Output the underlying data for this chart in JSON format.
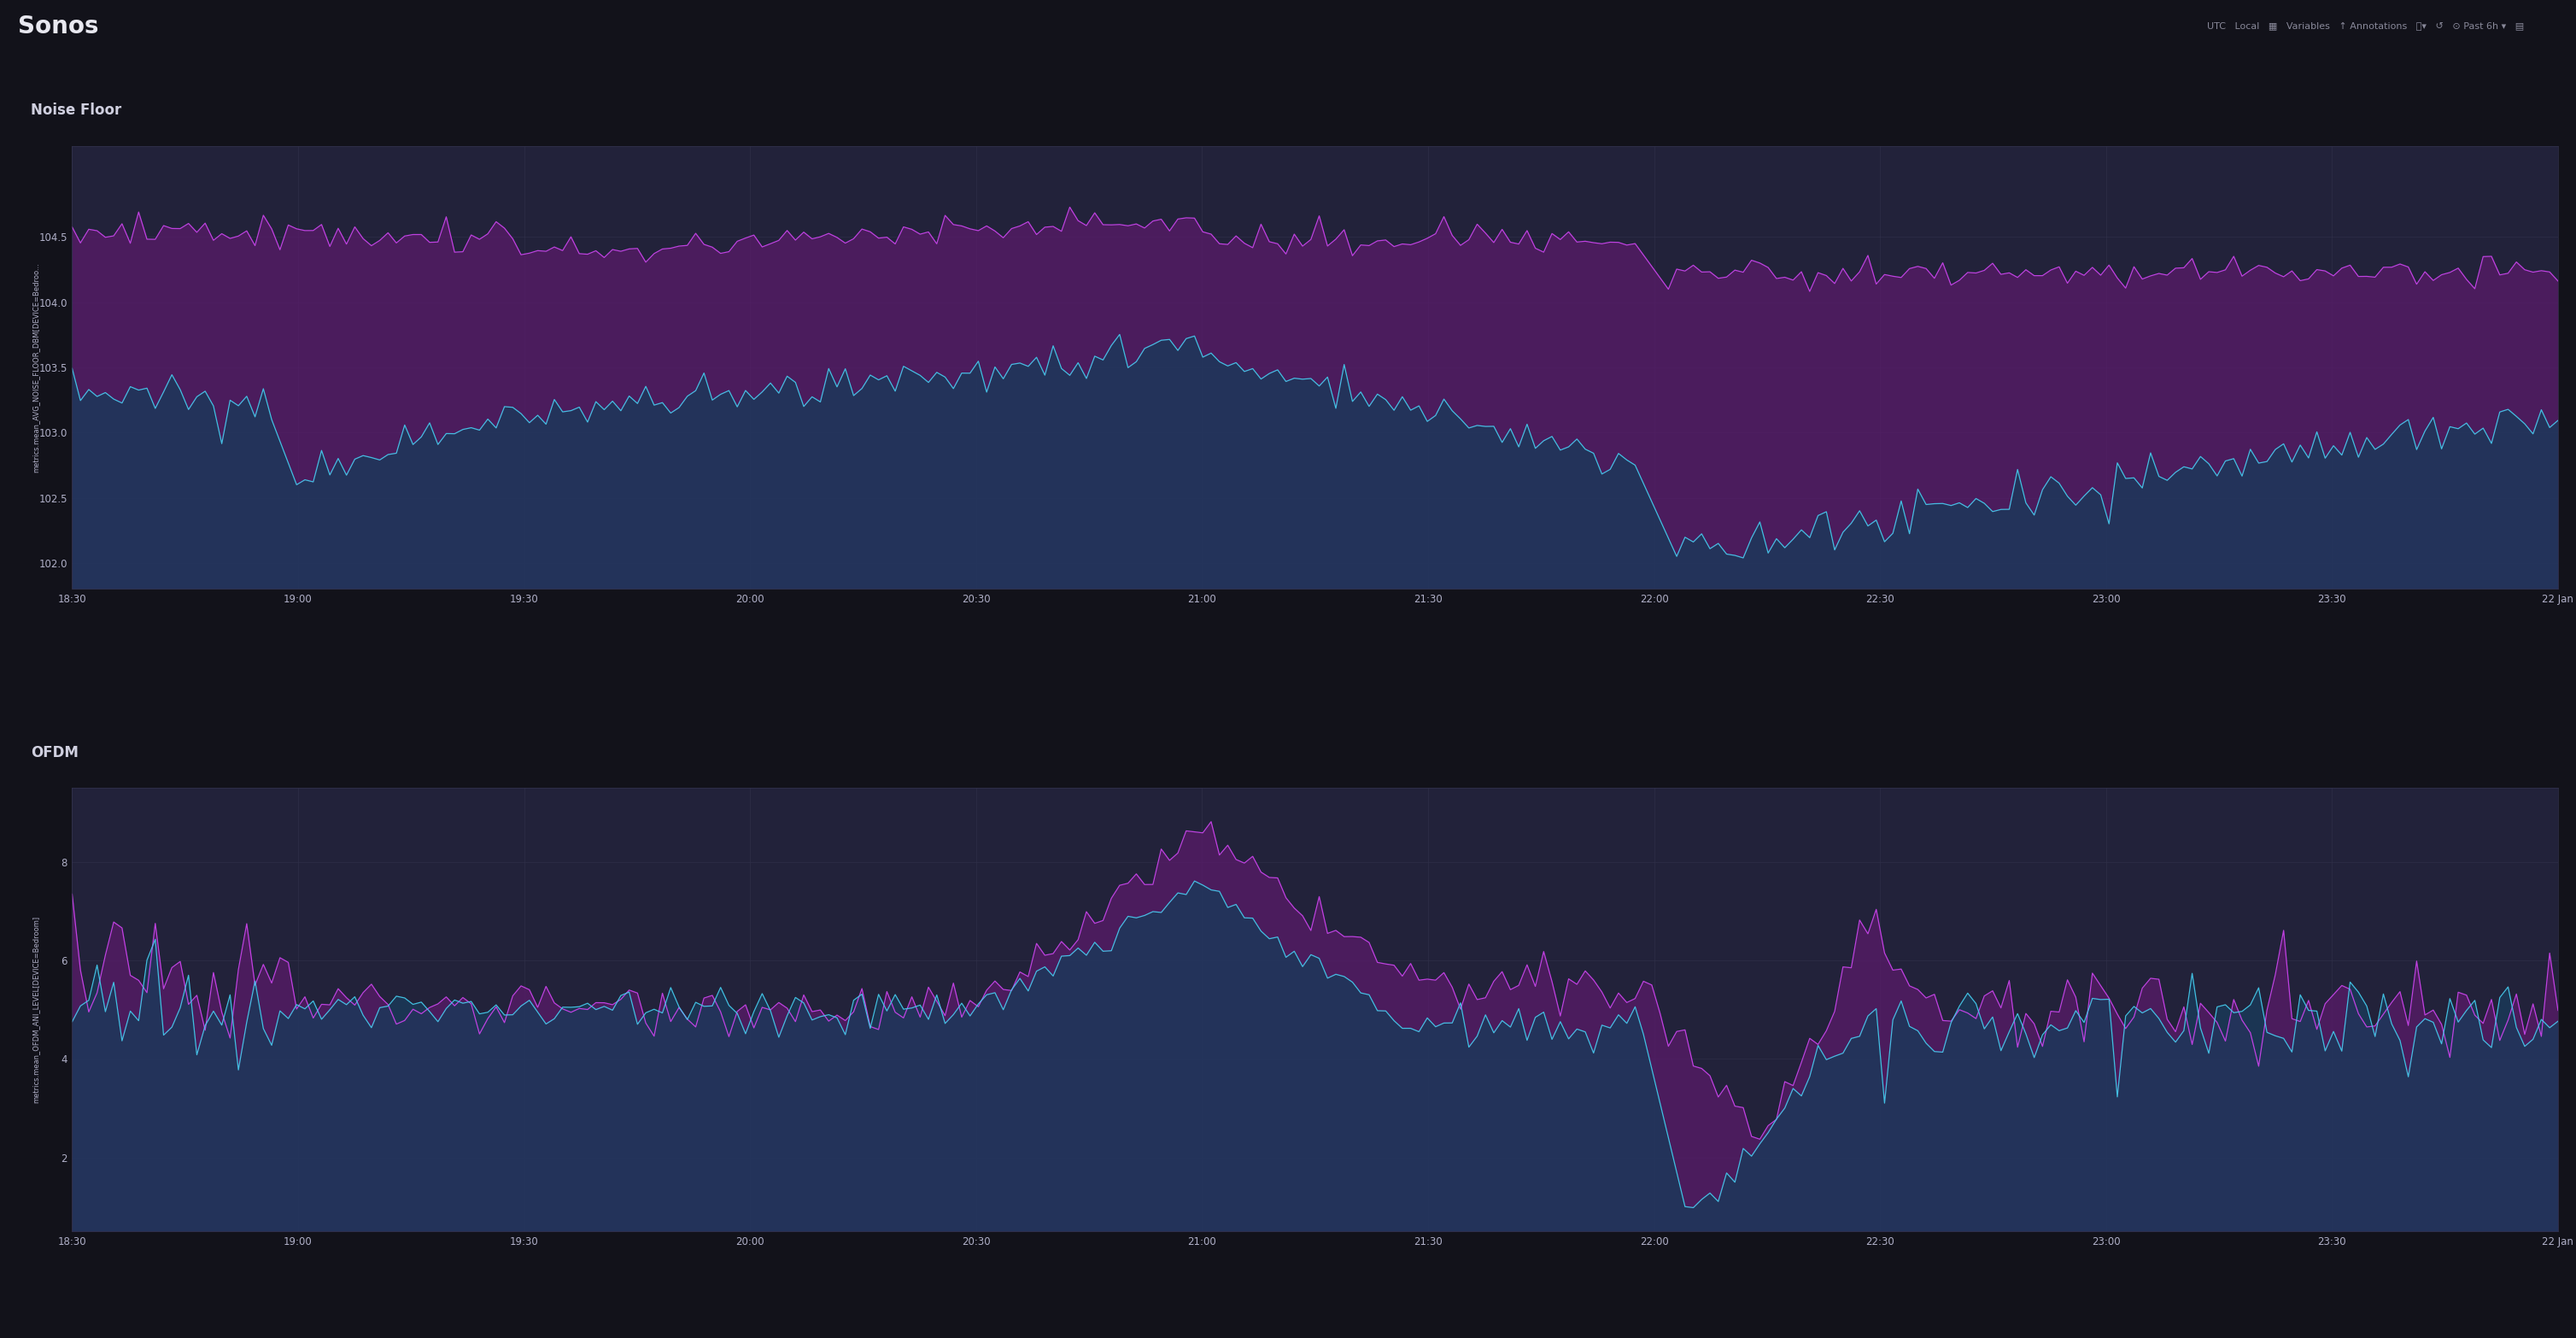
{
  "title": "Sonos",
  "bg_outer": "#12121a",
  "bg_panel_title": "#1e1e2d",
  "bg_chart": "#22223a",
  "grid_color": "#33334d",
  "text_color": "#b0b0c8",
  "title_color": "#e8e8f0",
  "panel_title_color": "#d0d0e0",
  "panel1_title": "Noise Floor",
  "panel1_ylabel": "metrics.mean_AVG_NOISE_FLOOR_DBM[DEVICE=Bedroo...",
  "panel1_ylim": [
    101.8,
    105.2
  ],
  "panel1_yticks": [
    102.0,
    102.5,
    103.0,
    103.5,
    104.0,
    104.5
  ],
  "panel1_line1_color": "#cc44ee",
  "panel1_line2_color": "#44ccee",
  "panel1_fill1_color": "#5a1a6a",
  "panel1_fill2_color": "#1a3a5a",
  "panel2_title": "OFDM",
  "panel2_ylabel": "metrics.mean_OFDM_ANI_LEVEL[DEVICE=Bedroom]",
  "panel2_ylim": [
    0.5,
    9.5
  ],
  "panel2_yticks": [
    2,
    4,
    6,
    8
  ],
  "panel2_line1_color": "#cc44ee",
  "panel2_line2_color": "#44ccee",
  "panel2_fill1_color": "#5a1a6a",
  "panel2_fill2_color": "#1a3a5a",
  "x_ticks_labels": [
    "18:30",
    "19:00",
    "19:30",
    "20:00",
    "20:30",
    "21:00",
    "21:30",
    "22:00",
    "22:30",
    "23:00",
    "23:30",
    "22 Jan"
  ],
  "x_ticks_pos": [
    0.0,
    0.5,
    1.0,
    1.5,
    2.0,
    2.5,
    3.0,
    3.5,
    4.0,
    4.5,
    5.0,
    5.5
  ]
}
